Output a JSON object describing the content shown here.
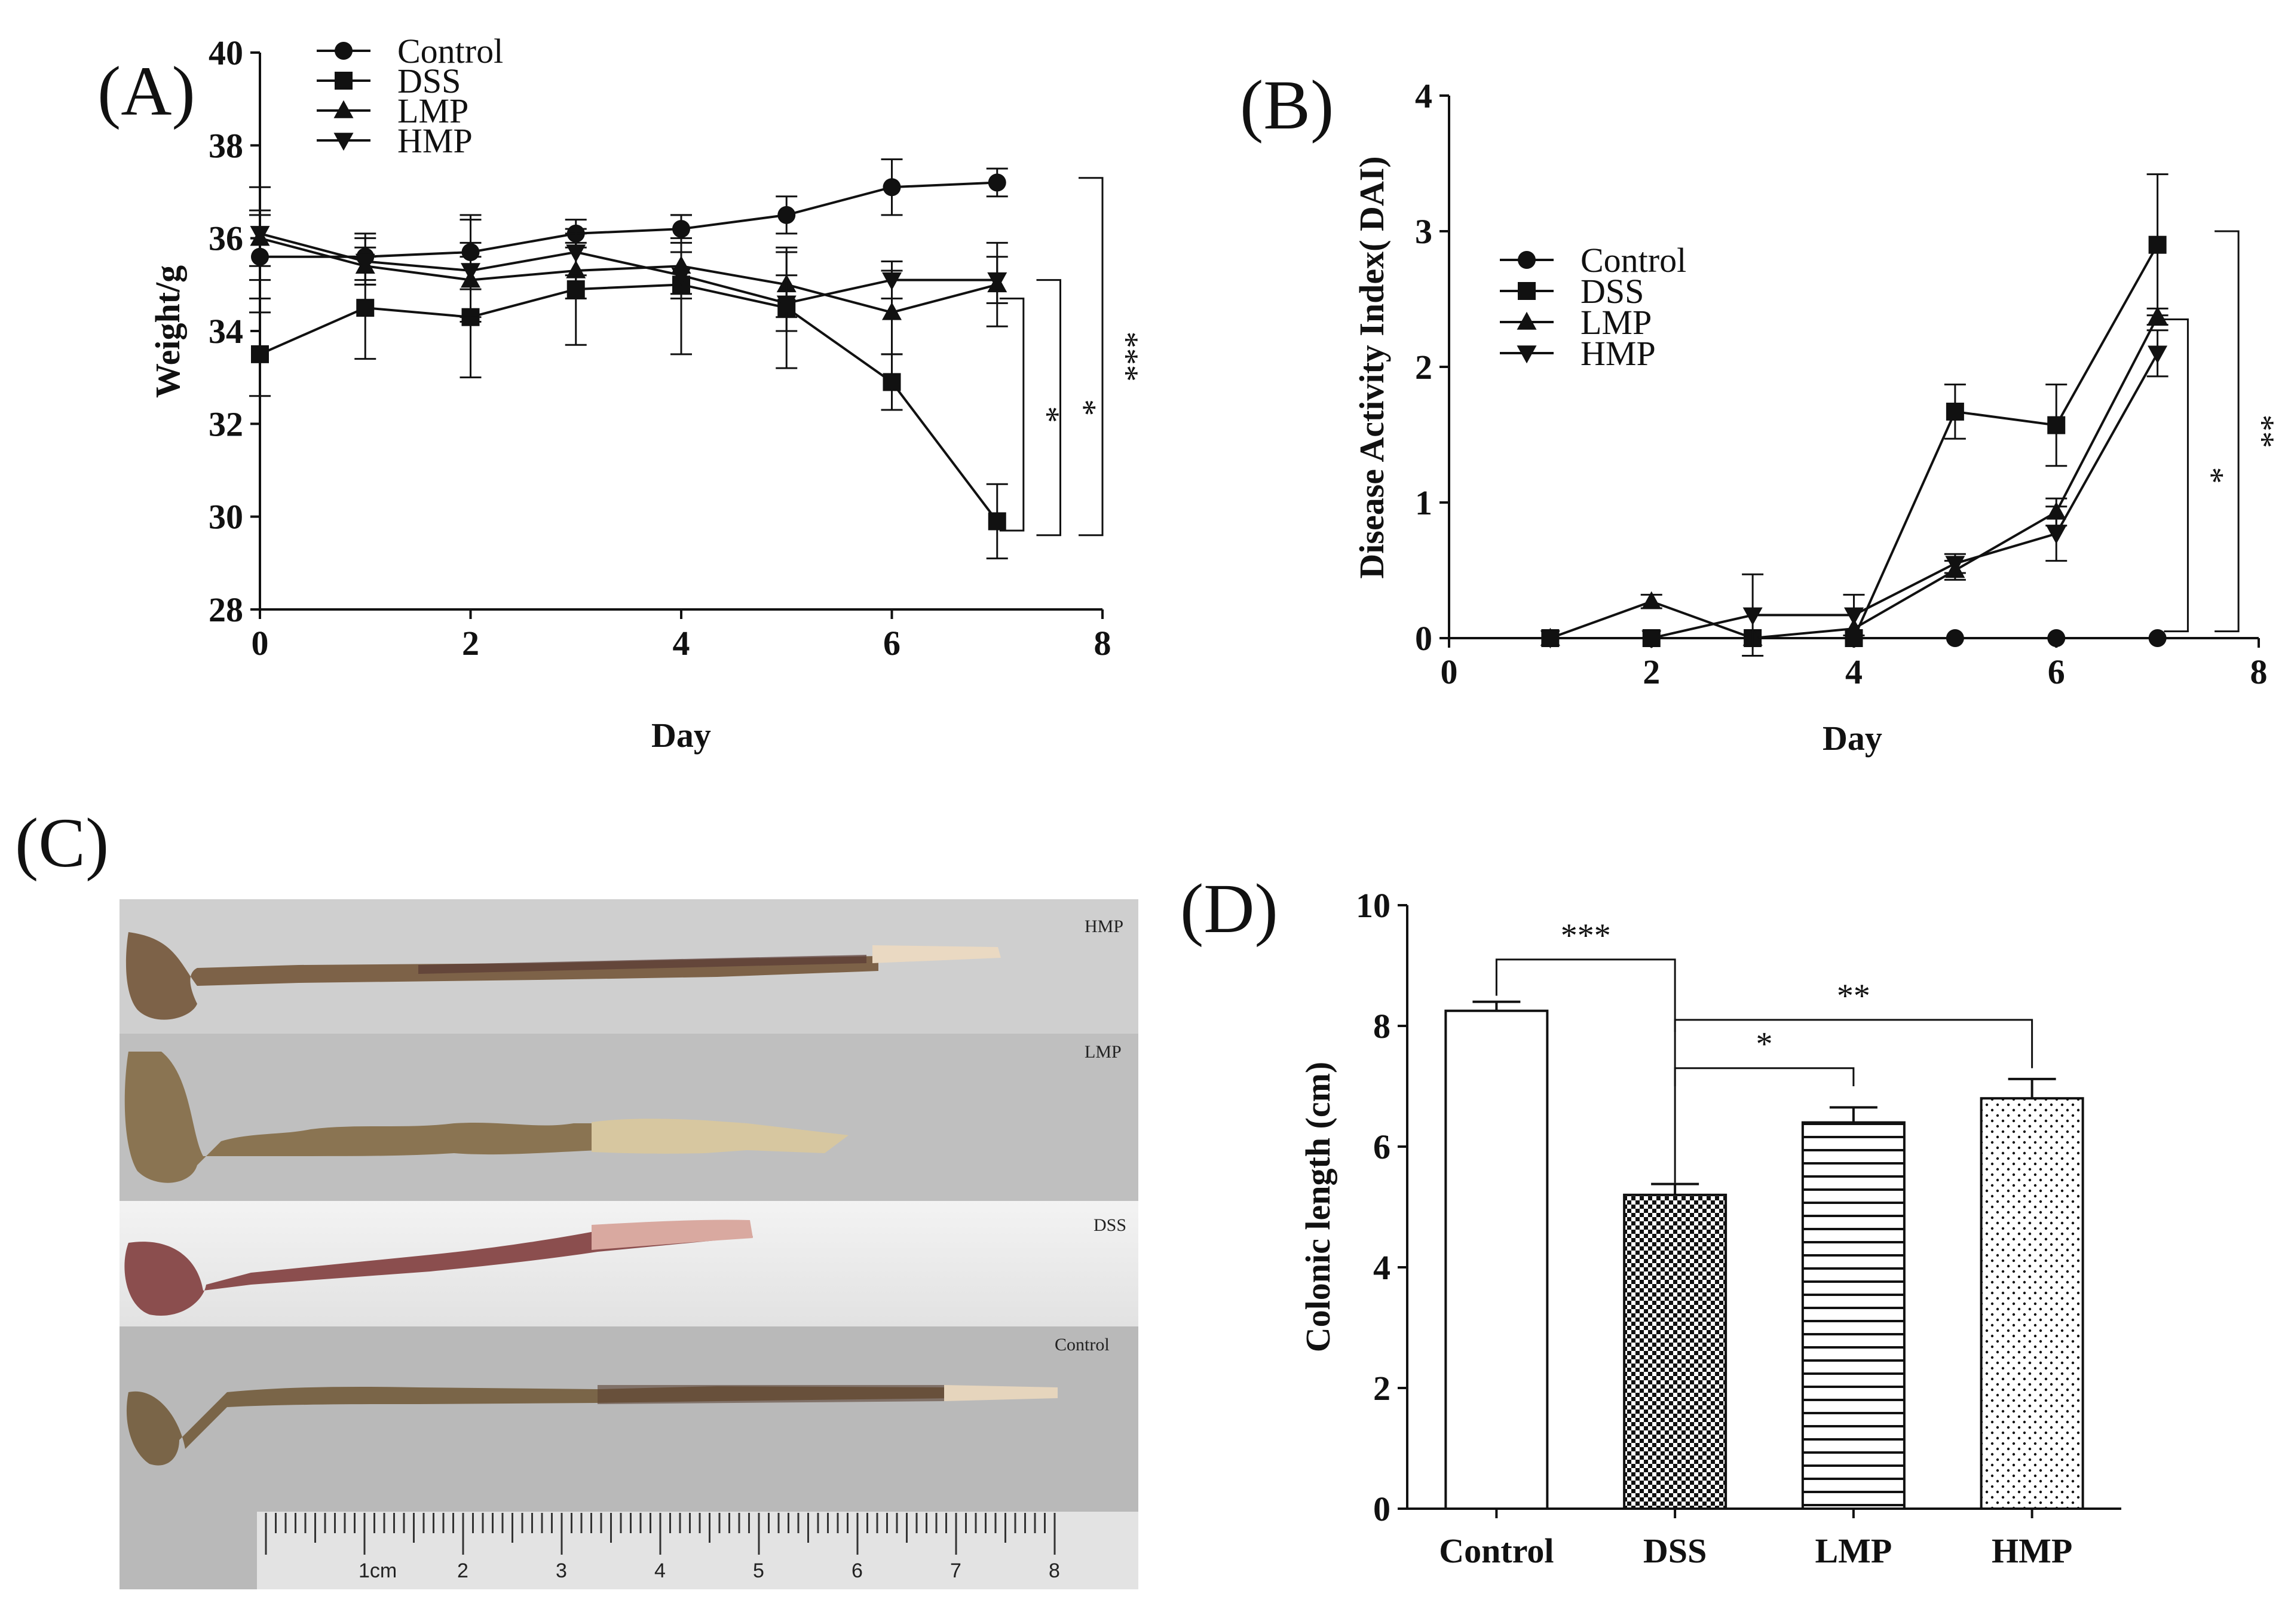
{
  "panels": {
    "a": "(A)",
    "b": "(B)",
    "c": "(C)",
    "d": "(D)"
  },
  "colors": {
    "ink": "#111111",
    "photo_bg": "#cfcfcf",
    "colon_brown": "#7a5a45",
    "colon_red": "#8a4b4b",
    "colon_pale": "#e9dcc8"
  },
  "chart_data": [
    {
      "id": "A",
      "type": "line",
      "title": "",
      "xlabel": "Day",
      "ylabel": "Weight/g",
      "xlim": [
        0,
        8
      ],
      "ylim": [
        28,
        40
      ],
      "x_ticks": [
        0,
        2,
        4,
        6,
        8
      ],
      "y_ticks": [
        28,
        30,
        32,
        34,
        36,
        38,
        40
      ],
      "legend_position": "top-left",
      "series": [
        {
          "name": "Control",
          "marker": "circle",
          "x": [
            0,
            1,
            2,
            3,
            4,
            5,
            6,
            7
          ],
          "values": [
            35.6,
            35.6,
            35.7,
            36.1,
            36.2,
            36.5,
            37.1,
            37.2
          ],
          "err": [
            0.9,
            0.5,
            0.8,
            0.3,
            0.3,
            0.4,
            0.6,
            0.3
          ]
        },
        {
          "name": "DSS",
          "marker": "square",
          "x": [
            0,
            1,
            2,
            3,
            4,
            5,
            6,
            7
          ],
          "values": [
            33.5,
            34.5,
            34.3,
            34.9,
            35.0,
            34.5,
            32.9,
            29.9
          ],
          "err": [
            0.9,
            1.1,
            1.3,
            1.2,
            1.5,
            1.3,
            0.6,
            0.8
          ]
        },
        {
          "name": "LMP",
          "marker": "triangle-up",
          "x": [
            0,
            1,
            2,
            3,
            4,
            5,
            6,
            7
          ],
          "values": [
            36.0,
            35.4,
            35.1,
            35.3,
            35.4,
            35.0,
            34.4,
            35.0
          ],
          "err": [
            0.6,
            0.4,
            0.8,
            0.6,
            0.6,
            0.7,
            0.9,
            0.9
          ]
        },
        {
          "name": "HMP",
          "marker": "triangle-down",
          "x": [
            0,
            1,
            2,
            3,
            4,
            5,
            6,
            7
          ],
          "values": [
            36.1,
            35.5,
            35.3,
            35.7,
            35.2,
            34.6,
            35.1,
            35.1
          ],
          "err": [
            1.0,
            0.5,
            1.1,
            0.5,
            0.5,
            0.6,
            0.4,
            0.5
          ]
        }
      ],
      "significance": [
        {
          "label": "*",
          "x": 7.25,
          "y1": 34.7,
          "y2": 29.7
        },
        {
          "label": "*",
          "x": 7.6,
          "y1": 35.1,
          "y2": 29.6
        },
        {
          "label": "***",
          "x": 8.0,
          "y1": 37.3,
          "y2": 29.6
        }
      ]
    },
    {
      "id": "B",
      "type": "line",
      "title": "",
      "xlabel": "Day",
      "ylabel": "Disease Activity Index( DAI)",
      "xlim": [
        0,
        8
      ],
      "ylim": [
        0,
        4
      ],
      "x_ticks": [
        0,
        2,
        4,
        6,
        8
      ],
      "y_ticks": [
        0,
        1,
        2,
        3,
        4
      ],
      "legend_position": "middle-left",
      "series": [
        {
          "name": "Control",
          "marker": "circle",
          "x": [
            1,
            2,
            3,
            4,
            5,
            6,
            7
          ],
          "values": [
            0,
            0,
            0,
            0,
            0,
            0,
            0
          ],
          "err": [
            0,
            0,
            0,
            0,
            0,
            0,
            0
          ]
        },
        {
          "name": "DSS",
          "marker": "square",
          "x": [
            1,
            2,
            3,
            4,
            5,
            6,
            7
          ],
          "values": [
            0,
            0,
            0,
            0,
            1.67,
            1.57,
            2.9
          ],
          "err": [
            0,
            0,
            0,
            0,
            0.2,
            0.3,
            0.52
          ]
        },
        {
          "name": "LMP",
          "marker": "triangle-up",
          "x": [
            1,
            2,
            3,
            4,
            5,
            6,
            7
          ],
          "values": [
            0,
            0.27,
            0,
            0.07,
            0.5,
            0.93,
            2.37
          ],
          "err": [
            0,
            0.05,
            0,
            0,
            0.07,
            0.1,
            0.06
          ]
        },
        {
          "name": "HMP",
          "marker": "triangle-down",
          "x": [
            1,
            2,
            3,
            4,
            5,
            6,
            7
          ],
          "values": [
            0,
            0,
            0.17,
            0.17,
            0.55,
            0.77,
            2.1
          ],
          "err": [
            0,
            0,
            0.3,
            0.15,
            0.07,
            0.2,
            0.17
          ]
        }
      ],
      "significance": [
        {
          "label": "*",
          "x": 7.3,
          "y1": 2.35,
          "y2": 0.05
        },
        {
          "label": "**",
          "x": 7.8,
          "y1": 3.0,
          "y2": 0.05
        }
      ]
    },
    {
      "id": "D",
      "type": "bar",
      "title": "",
      "xlabel": "",
      "ylabel": "Colonic length (cm)",
      "categories": [
        "Control",
        "DSS",
        "LMP",
        "HMP"
      ],
      "values": [
        8.25,
        5.2,
        6.4,
        6.8
      ],
      "err": [
        0.15,
        0.18,
        0.25,
        0.32
      ],
      "patterns": [
        "none",
        "checker",
        "horizontal-lines",
        "dots"
      ],
      "ylim": [
        0,
        10
      ],
      "y_ticks": [
        0,
        2,
        4,
        6,
        8,
        10
      ],
      "significance": [
        {
          "label": "***",
          "from": 0,
          "to": 1,
          "y": 9.1,
          "y_from": 8.5,
          "y_to": 5.4
        },
        {
          "label": "*",
          "from": 1,
          "to": 2,
          "y": 7.3,
          "y_from": 7.0,
          "y_to": 7.0
        },
        {
          "label": "**",
          "from": 1,
          "to": 3,
          "y": 8.1,
          "y_from": 7.9,
          "y_to": 7.3
        }
      ]
    }
  ],
  "photo": {
    "labels": [
      "HMP",
      "LMP",
      "DSS",
      "Control"
    ],
    "ruler": {
      "unit_label": "1cm",
      "numbers": [
        "2",
        "3",
        "4",
        "5",
        "6",
        "7",
        "8"
      ]
    }
  }
}
